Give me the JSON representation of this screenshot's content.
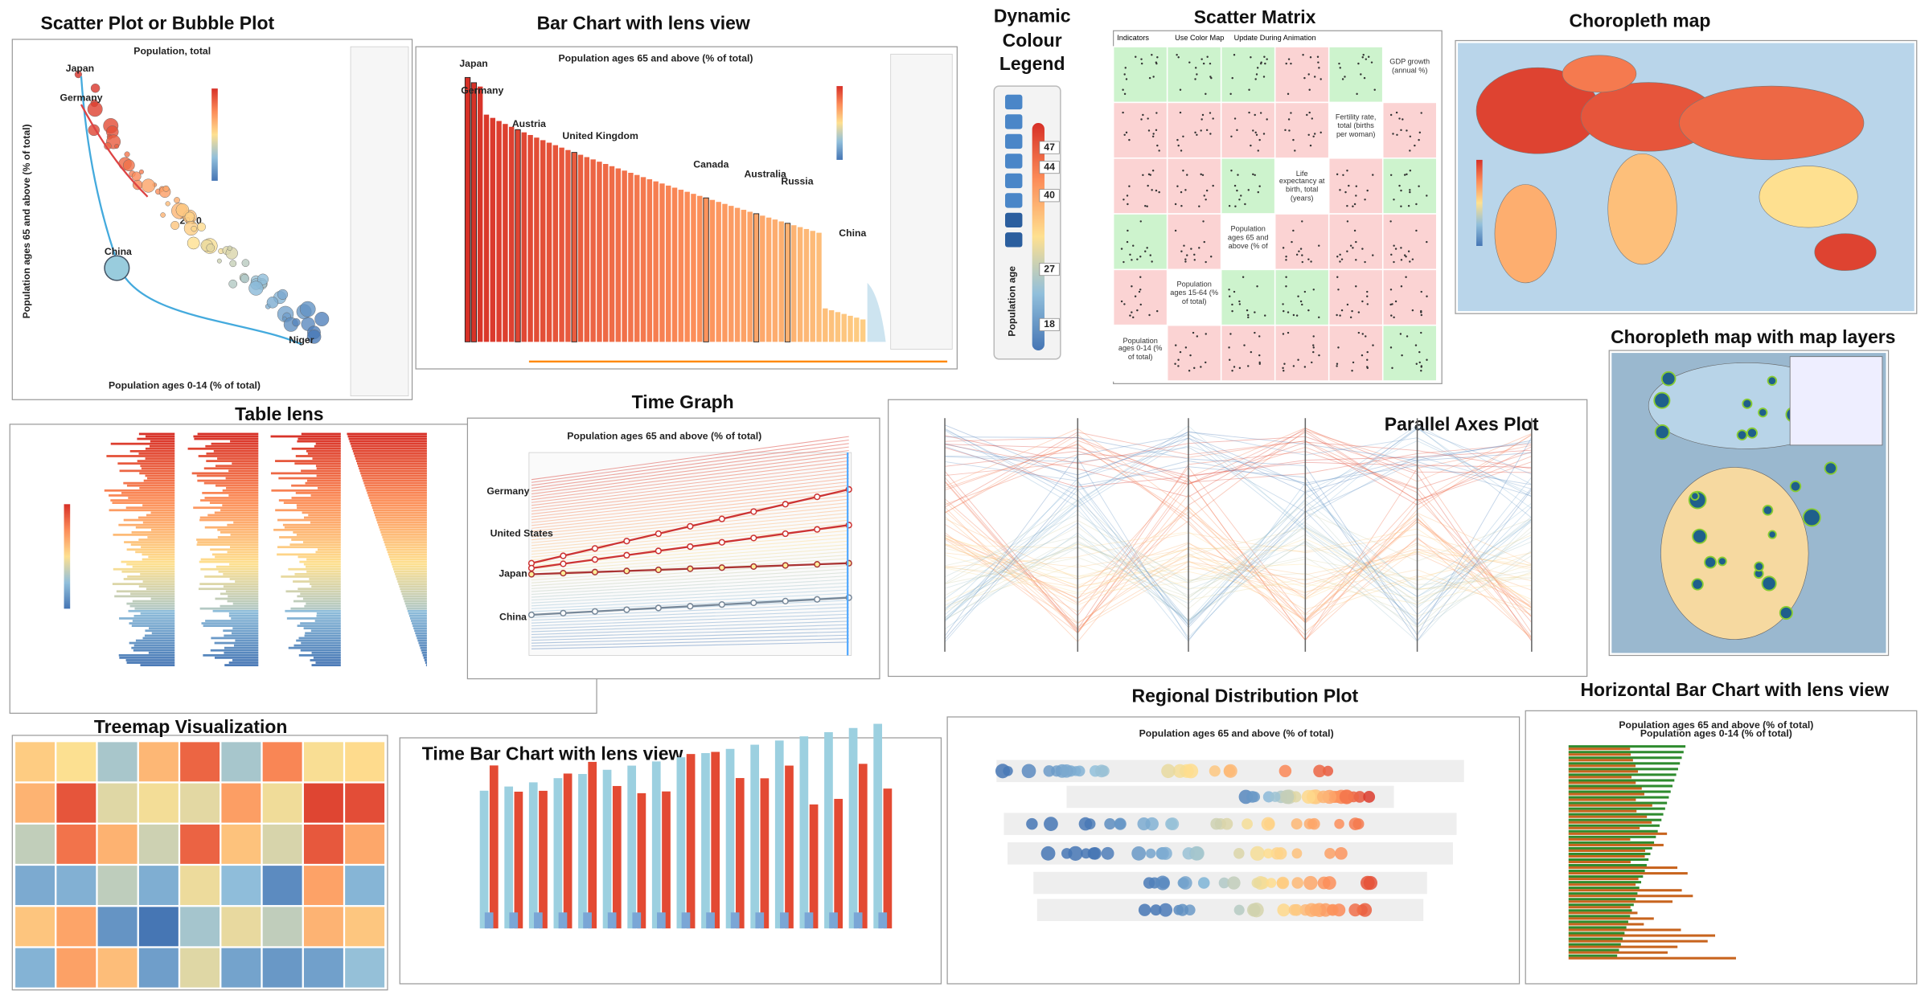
{
  "panels": {
    "scatter": {
      "title": "Scatter Plot or Bubble Plot",
      "heading": "Population, total",
      "y_label": "Population ages 65 and above (% of total)",
      "x_label": "Population ages 0-14 (% of total)",
      "watermark": "2010",
      "labels": [
        "Japan",
        "Germany",
        "China",
        "Niger"
      ]
    },
    "bar": {
      "title": "Bar Chart with lens view",
      "heading": "Population ages 65 and above (% of total)",
      "labels": [
        "Japan",
        "Germany",
        "Austria",
        "United Kingdom",
        "Canada",
        "Australia",
        "Russia",
        "China"
      ]
    },
    "legend": {
      "title": "Dynamic Colour Legend",
      "variable": "Population age",
      "ticks": [
        47,
        44,
        40,
        27,
        18
      ]
    },
    "matrix": {
      "title": "Scatter Matrix",
      "controls": [
        "Indicators",
        "Use Color Map",
        "Update During Animation"
      ],
      "variables": [
        "GDP growth (annual %)",
        "Fertility rate, total (births per woman)",
        "Life expectancy at birth, total (years)",
        "Population ages 65 and above (% of",
        "Population ages 15-64 (% of total)",
        "Population ages 0-14 (% of total)"
      ]
    },
    "choropleth": {
      "title": "Choropleth map"
    },
    "layers": {
      "title": "Choropleth map with map layers"
    },
    "table_lens": {
      "title": "Table lens"
    },
    "time_graph": {
      "title": "Time Graph",
      "heading": "Population ages 65 and above (% of total)",
      "labels": [
        "Germany",
        "United States",
        "Japan",
        "China"
      ]
    },
    "parallel": {
      "title": "Parallel Axes Plot"
    },
    "treemap": {
      "title": "Treemap Visualization"
    },
    "time_bar": {
      "title": "Time Bar Chart with lens view"
    },
    "regional": {
      "title": "Regional Distribution Plot",
      "heading": "Population ages 65 and above (% of total)"
    },
    "hbar": {
      "title": "Horizontal Bar Chart with lens view",
      "legend": [
        "Population ages 65 and above (% of total)",
        "Population ages 0-14 (% of total)"
      ]
    }
  }
}
